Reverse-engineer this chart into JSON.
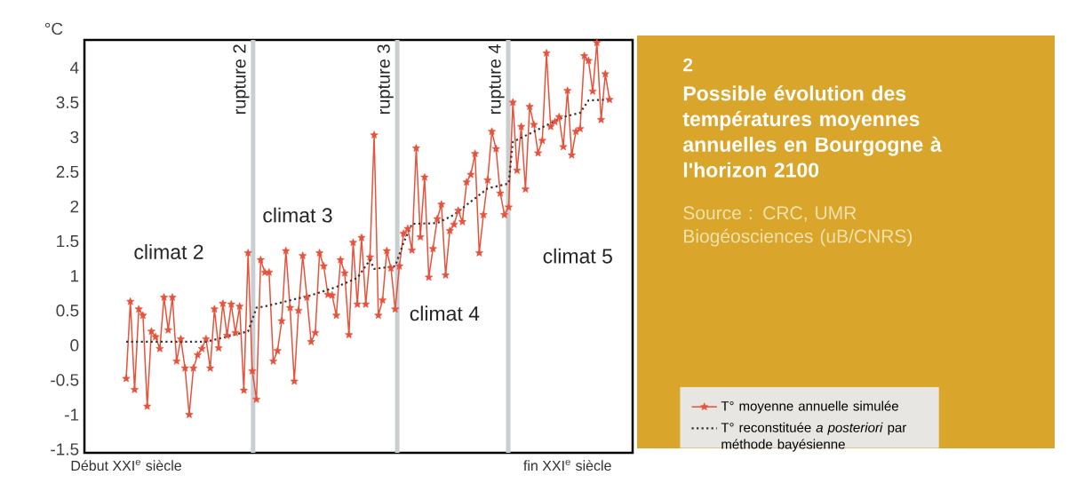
{
  "chart_data": {
    "type": "line",
    "title": "Possible évolution des températures moyennes annuelles en Bourgogne à l'horizon 2100",
    "ylabel": "°C",
    "annotations": [
      "2",
      "Source : CRC, UMR Biogéosciences (uB/CNRS)",
      "climat 2",
      "climat 3",
      "climat 4",
      "climat 5",
      "rupture 2",
      "rupture 3",
      "rupture 4"
    ],
    "categories": [
      "Début XXI$^{e}$ siècle",
      null,
      null,
      null,
      null,
      null,
      null,
      null,
      null,
      null,
      null,
      null,
      null,
      null,
      null,
      null,
      null,
      null,
      null,
      null,
      null,
      null,
      null,
      null,
      null,
      null,
      null,
      null,
      null,
      null,
      null,
      null,
      null,
      null,
      null,
      null,
      null,
      null,
      null,
      null,
      null,
      null,
      null,
      null,
      null,
      null,
      null,
      null,
      null,
      null,
      null,
      null,
      null,
      null,
      null,
      null,
      null,
      null,
      null,
      null,
      null,
      null,
      null,
      null,
      null,
      null,
      null,
      null,
      null,
      null,
      null,
      null,
      null,
      null,
      null,
      null,
      null,
      null,
      null,
      null,
      null,
      null,
      null,
      null,
      null,
      null,
      null,
      null,
      null,
      null,
      null,
      null,
      null,
      null,
      null,
      null,
      null,
      null,
      null,
      null,
      null,
      null,
      null,
      null,
      null,
      "fin XXI$^{e}$ siècle",
      null,
      null,
      null,
      null,
      null,
      null,
      null,
      null,
      null,
      null
    ],
    "ylim": [
      -1.55,
      4.4
    ],
    "yticks": [
      -1.5,
      -1,
      -0.5,
      0,
      0.5,
      1,
      1.5,
      2,
      2.5,
      3,
      3.5,
      4
    ],
    "series": [
      {
        "name": "T° moyenne annuelle simulée",
        "color": "#e5533c",
        "marker": "star",
        "values": [
          -0.48,
          0.63,
          -0.64,
          0.52,
          0.43,
          -0.88,
          0.2,
          0.12,
          -0.05,
          0.69,
          0.22,
          0.69,
          -0.23,
          0.09,
          -0.33,
          -1.0,
          -0.33,
          -0.14,
          -0.05,
          0.09,
          -0.33,
          0.52,
          -0.04,
          0.6,
          0.14,
          0.59,
          0.18,
          0.56,
          -0.65,
          1.33,
          -0.37,
          -0.78,
          1.23,
          1.05,
          1.05,
          -0.23,
          -0.08,
          0.35,
          1.36,
          0.54,
          -0.52,
          0.5,
          1.29,
          0.69,
          0.05,
          0.18,
          1.33,
          1.14,
          0.73,
          0.72,
          0.43,
          1.23,
          1.04,
          0.15,
          1.48,
          0.59,
          1.55,
          0.59,
          1.27,
          3.03,
          0.43,
          0.65,
          1.36,
          1.11,
          0.52,
          1.14,
          1.61,
          1.68,
          1.37,
          2.84,
          1.56,
          2.42,
          0.98,
          1.39,
          1.82,
          2.03,
          1.01,
          1.65,
          1.74,
          1.94,
          1.78,
          2.35,
          2.46,
          2.76,
          1.33,
          1.88,
          2.38,
          3.08,
          2.83,
          2.19,
          1.88,
          1.99,
          3.5,
          2.52,
          3.15,
          2.25,
          3.44,
          3.18,
          2.77,
          2.95,
          4.21,
          3.15,
          3.22,
          3.29,
          2.86,
          3.67,
          2.74,
          3.08,
          3.12,
          4.17,
          4.1,
          3.66,
          4.36,
          3.25,
          3.91,
          3.54
        ]
      },
      {
        "name": "T° reconstituée *a posteriori* par méthode bayésienne",
        "color": "#333333",
        "line_style": "dotted",
        "values": [
          0.05,
          null,
          null,
          null,
          null,
          null,
          null,
          null,
          null,
          null,
          null,
          null,
          null,
          null,
          null,
          null,
          null,
          null,
          null,
          0.05,
          null,
          null,
          null,
          null,
          null,
          null,
          null,
          null,
          null,
          0.2,
          null,
          0.54,
          null,
          0.56,
          null,
          null,
          null,
          null,
          null,
          null,
          null,
          null,
          null,
          null,
          0.72,
          null,
          null,
          null,
          null,
          null,
          0.84,
          null,
          null,
          null,
          null,
          0.97,
          null,
          null,
          1.23,
          1.1,
          null,
          null,
          null,
          null,
          1.14,
          null,
          1.48,
          null,
          1.75,
          null,
          null,
          null,
          null,
          null,
          1.76,
          null,
          null,
          null,
          1.88,
          null,
          null,
          null,
          null,
          null,
          null,
          null,
          2.26,
          null,
          null,
          null,
          null,
          2.33,
          2.93,
          null,
          null,
          null,
          null,
          null,
          null,
          null,
          null,
          null,
          null,
          null,
          3.29,
          null,
          null,
          null,
          3.35,
          null,
          3.53,
          null,
          null,
          null,
          null,
          3.54
        ]
      }
    ],
    "legend": "right"
  }
}
